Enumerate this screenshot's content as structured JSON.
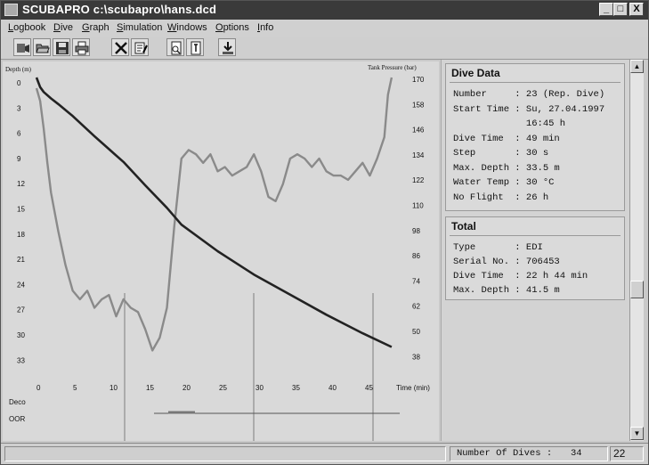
{
  "window": {
    "title": "SCUBAPRO c:\\scubapro\\hans.dcd",
    "controls": {
      "minimize": "_",
      "maximize": "□",
      "close": "X"
    }
  },
  "menu": [
    "Logbook",
    "Dive",
    "Graph",
    "Simulation",
    "Windows",
    "Options",
    "Info"
  ],
  "toolbar": {
    "icons": [
      "dive-computer-icon",
      "open-folder-icon",
      "save-disk-icon",
      "print-icon",
      "delete-x-icon",
      "edit-notes-icon",
      "page-view-icon",
      "info-page-icon",
      "download-icon"
    ]
  },
  "chart_data": {
    "type": "line",
    "ylabel": "Depth (m)",
    "y2label": "Tank Pressure (bar)",
    "xlabel": "Time (min)",
    "x_ticks": [
      "0",
      "5",
      "10",
      "15",
      "20",
      "25",
      "30",
      "35",
      "40",
      "45"
    ],
    "y_ticks": [
      "0",
      "3",
      "6",
      "9",
      "12",
      "15",
      "18",
      "21",
      "24",
      "27",
      "30",
      "33"
    ],
    "y2_ticks": [
      "170",
      "158",
      "146",
      "134",
      "122",
      "110",
      "98",
      "86",
      "74",
      "62",
      "50",
      "38"
    ],
    "xlim": [
      0,
      50
    ],
    "ylim": [
      0,
      35
    ],
    "y2lim": [
      38,
      170
    ],
    "deco_label": "Deco",
    "oor_label": "OOR",
    "series": [
      {
        "name": "Tank Pressure",
        "unit": "bar",
        "x": [
          0,
          0.5,
          1,
          1.5,
          2,
          3,
          4,
          5,
          6,
          7,
          8,
          9,
          10,
          11,
          12,
          13,
          14,
          15,
          16,
          17,
          18,
          19,
          20,
          21,
          22,
          23,
          24,
          25,
          26,
          27,
          28,
          29,
          30,
          31,
          32,
          33,
          34,
          35,
          36,
          37,
          38,
          39,
          40,
          41,
          42,
          43,
          44,
          45,
          46,
          47,
          48,
          48.5,
          49
        ],
        "values": [
          165,
          159,
          146,
          130,
          116,
          98,
          82,
          70,
          66,
          70,
          62,
          66,
          68,
          58,
          66,
          62,
          60,
          52,
          42,
          48,
          62,
          100,
          132,
          136,
          134,
          130,
          134,
          126,
          128,
          124,
          126,
          128,
          134,
          126,
          114,
          112,
          120,
          132,
          134,
          132,
          128,
          132,
          126,
          124,
          124,
          122,
          126,
          130,
          124,
          132,
          142,
          162,
          170
        ]
      },
      {
        "name": "Depth",
        "unit": "m",
        "x": [
          0,
          0.5,
          1,
          2,
          3,
          5,
          8,
          10,
          12,
          15,
          18,
          20,
          25,
          30,
          35,
          40,
          45,
          49
        ],
        "values": [
          0,
          1.2,
          1.8,
          2.6,
          3.3,
          4.8,
          7.3,
          8.9,
          10.5,
          13.4,
          16.2,
          18.3,
          21.6,
          24.5,
          27.0,
          29.5,
          31.8,
          33.5
        ]
      }
    ]
  },
  "dive_data": {
    "title": "Dive Data",
    "rows": [
      {
        "label": "Number",
        "value": "23 (Rep. Dive)"
      },
      {
        "label": "Start Time",
        "value": "Su, 27.04.1997"
      },
      {
        "label": "",
        "value": "16:45 h"
      },
      {
        "label": "Dive Time",
        "value": "49 min"
      },
      {
        "label": "Step",
        "value": "30 s"
      },
      {
        "label": "Max. Depth",
        "value": "33.5 m"
      },
      {
        "label": "Water Temp",
        "value": "30 °C"
      },
      {
        "label": "No Flight",
        "value": "26 h"
      }
    ]
  },
  "total": {
    "title": "Total",
    "rows": [
      {
        "label": "Type",
        "value": "EDI"
      },
      {
        "label": "Serial No.",
        "value": "706453"
      },
      {
        "label": "Dive Time",
        "value": "22 h 44 min"
      },
      {
        "label": "Max. Depth",
        "value": "41.5 m"
      }
    ]
  },
  "status": {
    "label": "Number Of Dives :",
    "count": "34",
    "right": "22"
  }
}
